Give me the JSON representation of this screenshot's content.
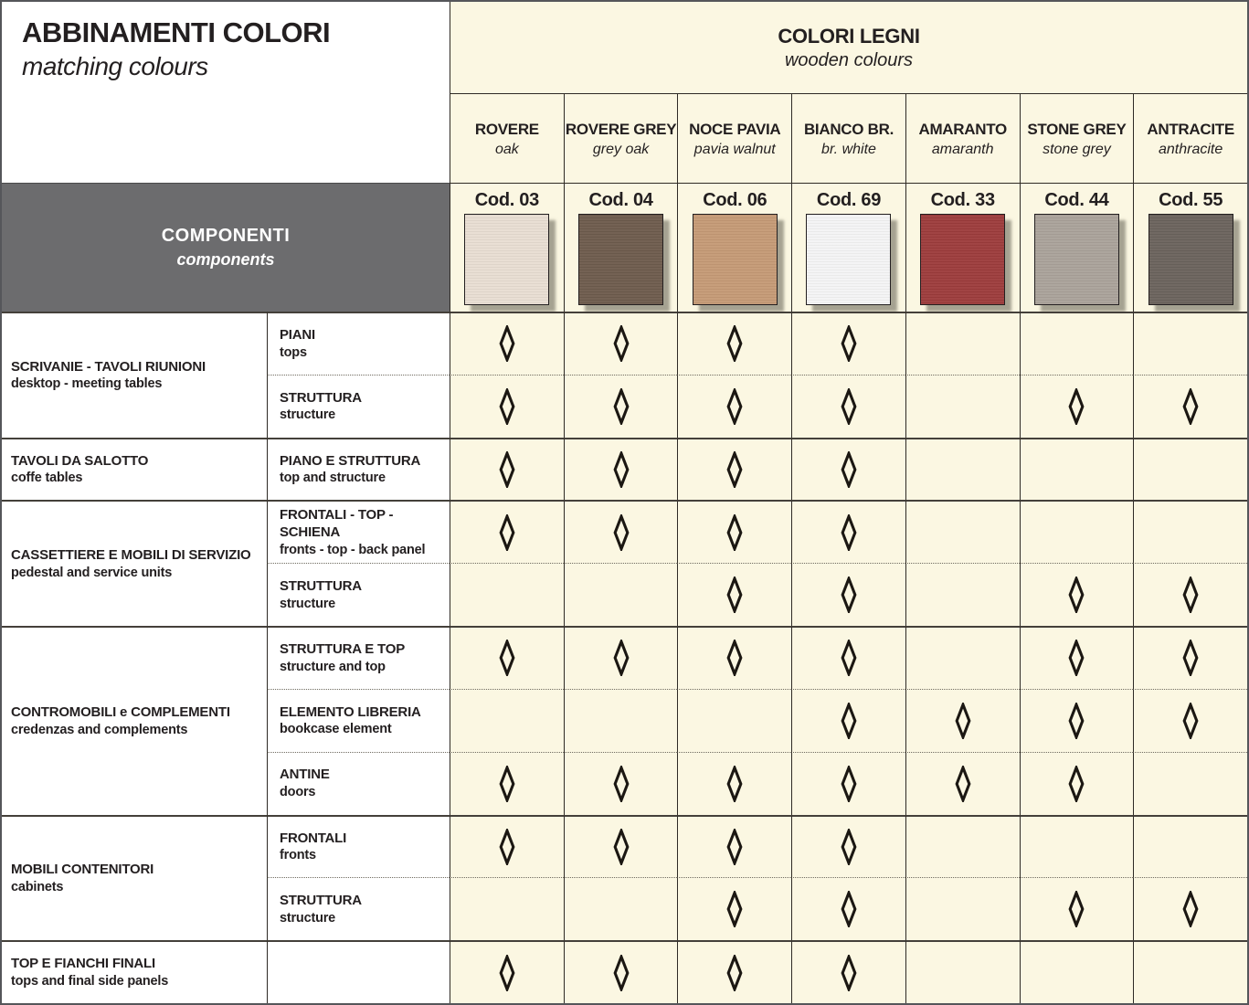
{
  "title": {
    "it": "ABBINAMENTI COLORI",
    "en": "matching colours"
  },
  "colors_header": {
    "it": "COLORI LEGNI",
    "en": "wooden colours"
  },
  "components_header": {
    "it": "COMPONENTI",
    "en": "components"
  },
  "palette": {
    "cream_bg": "#fbf7e2",
    "gray_block": "#6c6c6e",
    "text": "#231f20",
    "mark": "#1b1712"
  },
  "columns": [
    {
      "name": "ROVERE",
      "translation": "oak",
      "code": "Cod. 03",
      "swatch": "#e8ded2"
    },
    {
      "name": "ROVERE GREY",
      "translation": "grey oak",
      "code": "Cod. 04",
      "swatch": "#6e5c4d"
    },
    {
      "name": "NOCE PAVIA",
      "translation": "pavia walnut",
      "code": "Cod. 06",
      "swatch": "#c59a76"
    },
    {
      "name": "BIANCO BR.",
      "translation": "br. white",
      "code": "Cod. 69",
      "swatch": "#f4f4f5"
    },
    {
      "name": "AMARANTO",
      "translation": "amaranth",
      "code": "Cod. 33",
      "swatch": "#9d3c3c"
    },
    {
      "name": "STONE GREY",
      "translation": "stone grey",
      "code": "Cod. 44",
      "swatch": "#aaa29a"
    },
    {
      "name": "ANTRACITE",
      "translation": "anthracite",
      "code": "Cod. 55",
      "swatch": "#6b635d"
    }
  ],
  "groups": [
    {
      "it": "SCRIVANIE - TAVOLI RIUNIONI",
      "en": "desktop - meeting tables",
      "rows": [
        {
          "it": "PIANI",
          "en": "tops",
          "marks": [
            1,
            1,
            1,
            1,
            0,
            0,
            0
          ]
        },
        {
          "it": "STRUTTURA",
          "en": "structure",
          "marks": [
            1,
            1,
            1,
            1,
            0,
            1,
            1
          ]
        }
      ]
    },
    {
      "it": "TAVOLI DA SALOTTO",
      "en": "coffe tables",
      "rows": [
        {
          "it": "PIANO E STRUTTURA",
          "en": "top and structure",
          "marks": [
            1,
            1,
            1,
            1,
            0,
            0,
            0
          ]
        }
      ]
    },
    {
      "it": "CASSETTIERE E MOBILI DI SERVIZIO",
      "en": "pedestal and service units",
      "rows": [
        {
          "it": "FRONTALI - TOP -SCHIENA",
          "en": "fronts - top - back panel",
          "marks": [
            1,
            1,
            1,
            1,
            0,
            0,
            0
          ]
        },
        {
          "it": "STRUTTURA",
          "en": "structure",
          "marks": [
            0,
            0,
            1,
            1,
            0,
            1,
            1
          ]
        }
      ]
    },
    {
      "it": "CONTROMOBILI e COMPLEMENTI",
      "en": "credenzas and complements",
      "rows": [
        {
          "it": "STRUTTURA E TOP",
          "en": "structure and top",
          "marks": [
            1,
            1,
            1,
            1,
            0,
            1,
            1
          ]
        },
        {
          "it": "ELEMENTO LIBRERIA",
          "en": "bookcase element",
          "marks": [
            0,
            0,
            0,
            1,
            1,
            1,
            1
          ]
        },
        {
          "it": "ANTINE",
          "en": "doors",
          "marks": [
            1,
            1,
            1,
            1,
            1,
            1,
            0
          ]
        }
      ]
    },
    {
      "it": "MOBILI CONTENITORI",
      "en": "cabinets",
      "rows": [
        {
          "it": "FRONTALI",
          "en": "fronts",
          "marks": [
            1,
            1,
            1,
            1,
            0,
            0,
            0
          ]
        },
        {
          "it": "STRUTTURA",
          "en": "structure",
          "marks": [
            0,
            0,
            1,
            1,
            0,
            1,
            1
          ]
        }
      ]
    },
    {
      "it": "TOP E FIANCHI FINALI",
      "en": "tops and final side panels",
      "rows": [
        {
          "it": "",
          "en": "",
          "marks": [
            1,
            1,
            1,
            1,
            0,
            0,
            0
          ]
        }
      ]
    }
  ]
}
